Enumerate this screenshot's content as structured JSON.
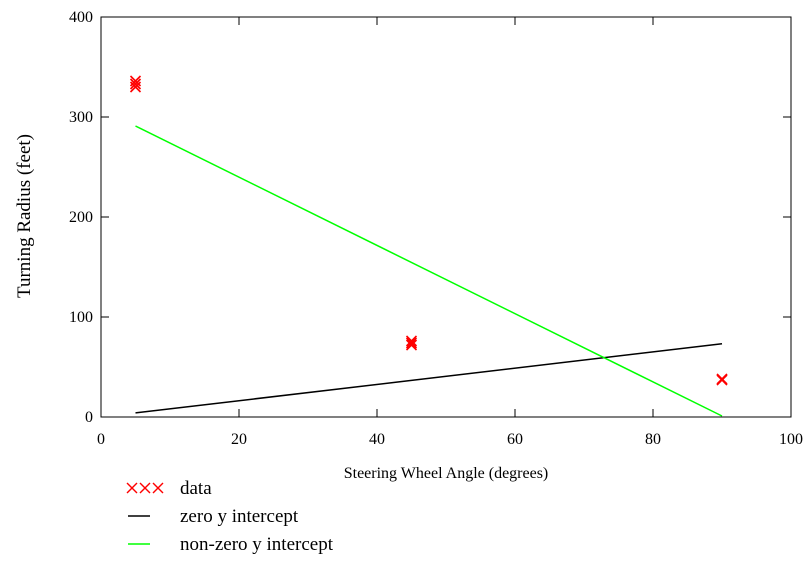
{
  "chart_data": {
    "type": "scatter",
    "title": "",
    "xlabel": "Steering Wheel Angle (degrees)",
    "ylabel": "Turning Radius (feet)",
    "xlim": [
      0,
      100
    ],
    "ylim": [
      0,
      400
    ],
    "xticks": [
      0,
      20,
      40,
      60,
      80,
      100
    ],
    "yticks": [
      0,
      100,
      200,
      300,
      400
    ],
    "grid": false,
    "legend_position": "bottom-left",
    "series": [
      {
        "name": "data",
        "kind": "marker",
        "marker": "x",
        "color": "#ff0000",
        "legend_symbol": "×××",
        "x": [
          5,
          5,
          5,
          45,
          45,
          45,
          90,
          90
        ],
        "y": [
          330,
          333,
          336,
          72,
          74,
          76,
          37,
          38
        ]
      },
      {
        "name": "zero y intercept",
        "kind": "line",
        "color": "#000000",
        "x": [
          5,
          90
        ],
        "y": [
          4.1,
          73.2
        ]
      },
      {
        "name": "non-zero y intercept",
        "kind": "line",
        "color": "#00ff00",
        "x": [
          5,
          90
        ],
        "y": [
          291,
          1
        ]
      }
    ]
  }
}
